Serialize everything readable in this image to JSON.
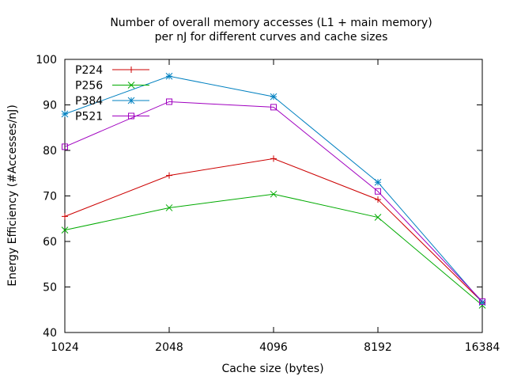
{
  "chart_data": {
    "type": "line",
    "title_line1": "Number of overall memory accesses (L1 + main memory)",
    "title_line2": "per nJ for different curves and cache sizes",
    "xlabel": "Cache size (bytes)",
    "ylabel": "Energy Efficiency (#Accesses/nJ)",
    "x_scale": "log2",
    "categories": [
      "1024",
      "2048",
      "4096",
      "8192",
      "16384"
    ],
    "ylim": [
      40,
      100
    ],
    "yticks": [
      "40",
      "50",
      "60",
      "70",
      "80",
      "90",
      "100"
    ],
    "legend_position": "top-left",
    "grid": false,
    "series": [
      {
        "name": "P224",
        "color": "#cc0000",
        "marker": "plus",
        "values": [
          65.5,
          74.5,
          78.2,
          69.2,
          46.7
        ]
      },
      {
        "name": "P256",
        "color": "#00aa00",
        "marker": "cross",
        "values": [
          62.5,
          67.4,
          70.4,
          65.3,
          46.0
        ]
      },
      {
        "name": "P384",
        "color": "#0080c0",
        "marker": "star",
        "values": [
          88.0,
          96.3,
          91.8,
          73.0,
          46.6
        ]
      },
      {
        "name": "P521",
        "color": "#a000c0",
        "marker": "box",
        "values": [
          80.8,
          90.7,
          89.5,
          71.0,
          46.8
        ]
      }
    ]
  }
}
